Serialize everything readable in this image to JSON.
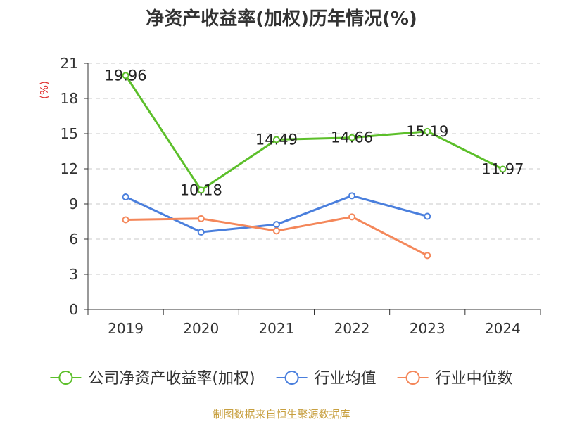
{
  "chart_data": {
    "type": "line",
    "title": "净资产收益率(加权)历年情况(%)",
    "ylabel": "(%)",
    "xlabel": "",
    "ylim": [
      0,
      21
    ],
    "yticks": [
      0,
      3,
      6,
      9,
      12,
      15,
      18,
      21
    ],
    "categories": [
      "2019",
      "2020",
      "2021",
      "2022",
      "2023",
      "2024"
    ],
    "grid": true,
    "legend_position": "bottom",
    "series": [
      {
        "name": "公司净资产收益率(加权)",
        "color": "#5cbf2a",
        "values": [
          19.96,
          10.18,
          14.49,
          14.66,
          15.19,
          11.97
        ],
        "labels": [
          "19.96",
          "10.18",
          "14.49",
          "14.66",
          "15.19",
          "11.97"
        ]
      },
      {
        "name": "行业均值",
        "color": "#4a7fdd",
        "values": [
          9.6,
          6.6,
          7.25,
          9.7,
          7.95,
          null
        ]
      },
      {
        "name": "行业中位数",
        "color": "#f4875a",
        "values": [
          7.65,
          7.75,
          6.7,
          7.9,
          4.6,
          null
        ]
      }
    ]
  },
  "source": "制图数据来自恒生聚源数据库",
  "colors": {
    "title": "#333333",
    "ylabel": "#e03030",
    "axis": "#333333",
    "grid": "#c8c8c8",
    "source": "#c8a040"
  }
}
